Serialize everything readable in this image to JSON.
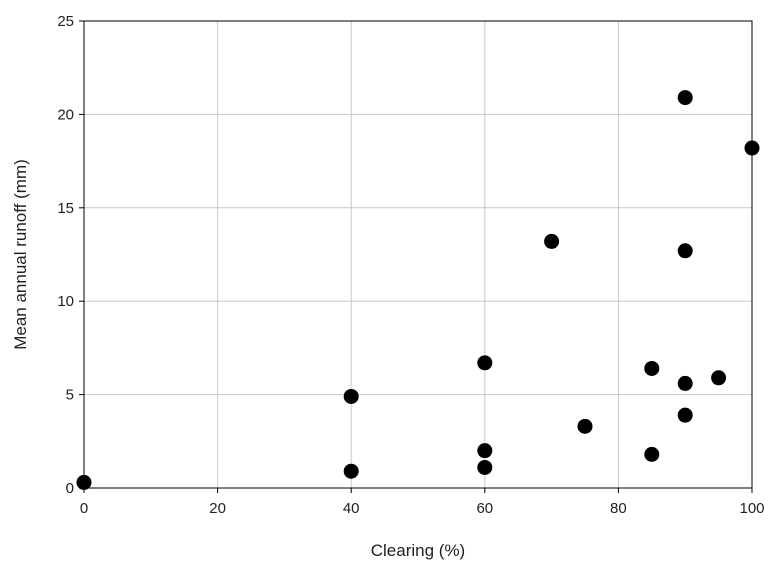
{
  "chart_data": {
    "type": "scatter",
    "xlabel": "Clearing (%)",
    "ylabel": "Mean annual runoff (mm)",
    "xlim": [
      0,
      100
    ],
    "ylim": [
      0,
      25
    ],
    "x_ticks": [
      0,
      20,
      40,
      60,
      80,
      100
    ],
    "y_ticks": [
      0,
      5,
      10,
      15,
      20,
      25
    ],
    "grid": true,
    "colors": {
      "marker": "#000000",
      "grid": "#c8c8c8",
      "axis": "#000000"
    },
    "series": [
      {
        "points": [
          {
            "x": 0,
            "y": 0.3
          },
          {
            "x": 40,
            "y": 0.9
          },
          {
            "x": 40,
            "y": 4.9
          },
          {
            "x": 60,
            "y": 1.1
          },
          {
            "x": 60,
            "y": 2.0
          },
          {
            "x": 60,
            "y": 6.7
          },
          {
            "x": 70,
            "y": 13.2
          },
          {
            "x": 75,
            "y": 3.3
          },
          {
            "x": 85,
            "y": 1.8
          },
          {
            "x": 85,
            "y": 6.4
          },
          {
            "x": 90,
            "y": 3.9
          },
          {
            "x": 90,
            "y": 5.6
          },
          {
            "x": 90,
            "y": 12.7
          },
          {
            "x": 90,
            "y": 20.9
          },
          {
            "x": 95,
            "y": 5.9
          },
          {
            "x": 100,
            "y": 18.2
          }
        ]
      }
    ]
  }
}
